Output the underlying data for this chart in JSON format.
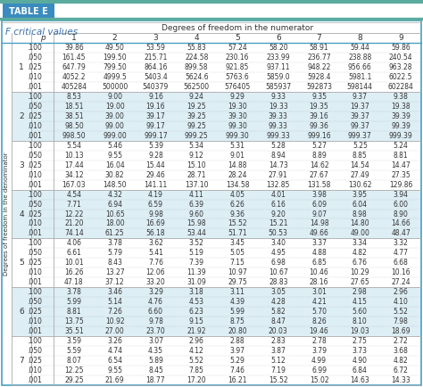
{
  "title_box": "TABLE E",
  "subtitle": "F critical values",
  "col_header": "Degrees of freedom in the numerator",
  "col_nums": [
    "1",
    "2",
    "3",
    "4",
    "5",
    "6",
    "7",
    "8",
    "9"
  ],
  "p_label": "p",
  "row_label_outer": "Degrees of freedom in the denominator",
  "row_groups": [
    {
      "group": "1",
      "rows": [
        {
          "p": ".100",
          "vals": [
            "39.86",
            "49.50",
            "53.59",
            "55.83",
            "57.24",
            "58.20",
            "58.91",
            "59.44",
            "59.86"
          ]
        },
        {
          "p": ".050",
          "vals": [
            "161.45",
            "199.50",
            "215.71",
            "224.58",
            "230.16",
            "233.99",
            "236.77",
            "238.88",
            "240.54"
          ]
        },
        {
          "p": ".025",
          "vals": [
            "647.79",
            "799.50",
            "864.16",
            "899.58",
            "921.85",
            "937.11",
            "948.22",
            "956.66",
            "963.28"
          ]
        },
        {
          "p": ".010",
          "vals": [
            "4052.2",
            "4999.5",
            "5403.4",
            "5624.6",
            "5763.6",
            "5859.0",
            "5928.4",
            "5981.1",
            "6022.5"
          ]
        },
        {
          "p": ".001",
          "vals": [
            "405284",
            "500000",
            "540379",
            "562500",
            "576405",
            "585937",
            "592873",
            "598144",
            "602284"
          ]
        }
      ]
    },
    {
      "group": "2",
      "rows": [
        {
          "p": ".100",
          "vals": [
            "8.53",
            "9.00",
            "9.16",
            "9.24",
            "9.29",
            "9.33",
            "9.35",
            "9.37",
            "9.38"
          ]
        },
        {
          "p": ".050",
          "vals": [
            "18.51",
            "19.00",
            "19.16",
            "19.25",
            "19.30",
            "19.33",
            "19.35",
            "19.37",
            "19.38"
          ]
        },
        {
          "p": ".025",
          "vals": [
            "38.51",
            "39.00",
            "39.17",
            "39.25",
            "39.30",
            "39.33",
            "39.16",
            "39.37",
            "39.39"
          ]
        },
        {
          "p": ".010",
          "vals": [
            "98.50",
            "99.00",
            "99.17",
            "99.25",
            "99.30",
            "99.33",
            "99.36",
            "99.37",
            "99.39"
          ]
        },
        {
          "p": ".001",
          "vals": [
            "998.50",
            "999.00",
            "999.17",
            "999.25",
            "999.30",
            "999.33",
            "999.16",
            "999.37",
            "999.39"
          ]
        }
      ]
    },
    {
      "group": "3",
      "rows": [
        {
          "p": ".100",
          "vals": [
            "5.54",
            "5.46",
            "5.39",
            "5.34",
            "5.31",
            "5.28",
            "5.27",
            "5.25",
            "5.24"
          ]
        },
        {
          "p": ".050",
          "vals": [
            "10.13",
            "9.55",
            "9.28",
            "9.12",
            "9.01",
            "8.94",
            "8.89",
            "8.85",
            "8.81"
          ]
        },
        {
          "p": ".025",
          "vals": [
            "17.44",
            "16.04",
            "15.44",
            "15.10",
            "14.88",
            "14.73",
            "14.62",
            "14.54",
            "14.47"
          ]
        },
        {
          "p": ".010",
          "vals": [
            "34.12",
            "30.82",
            "29.46",
            "28.71",
            "28.24",
            "27.91",
            "27.67",
            "27.49",
            "27.35"
          ]
        },
        {
          "p": ".001",
          "vals": [
            "167.03",
            "148.50",
            "141.11",
            "137.10",
            "134.58",
            "132.85",
            "131.58",
            "130.62",
            "129.86"
          ]
        }
      ]
    },
    {
      "group": "4",
      "rows": [
        {
          "p": ".100",
          "vals": [
            "4.54",
            "4.32",
            "4.19",
            "4.11",
            "4.05",
            "4.01",
            "3.98",
            "3.95",
            "3.94"
          ]
        },
        {
          "p": ".050",
          "vals": [
            "7.71",
            "6.94",
            "6.59",
            "6.39",
            "6.26",
            "6.16",
            "6.09",
            "6.04",
            "6.00"
          ]
        },
        {
          "p": ".025",
          "vals": [
            "12.22",
            "10.65",
            "9.98",
            "9.60",
            "9.36",
            "9.20",
            "9.07",
            "8.98",
            "8.90"
          ]
        },
        {
          "p": ".010",
          "vals": [
            "21.20",
            "18.00",
            "16.69",
            "15.98",
            "15.52",
            "15.21",
            "14.98",
            "14.80",
            "14.66"
          ]
        },
        {
          "p": ".001",
          "vals": [
            "74.14",
            "61.25",
            "56.18",
            "53.44",
            "51.71",
            "50.53",
            "49.66",
            "49.00",
            "48.47"
          ]
        }
      ]
    },
    {
      "group": "5",
      "rows": [
        {
          "p": ".100",
          "vals": [
            "4.06",
            "3.78",
            "3.62",
            "3.52",
            "3.45",
            "3.40",
            "3.37",
            "3.34",
            "3.32"
          ]
        },
        {
          "p": ".050",
          "vals": [
            "6.61",
            "5.79",
            "5.41",
            "5.19",
            "5.05",
            "4.95",
            "4.88",
            "4.82",
            "4.77"
          ]
        },
        {
          "p": ".025",
          "vals": [
            "10.01",
            "8.43",
            "7.76",
            "7.39",
            "7.15",
            "6.98",
            "6.85",
            "6.76",
            "6.68"
          ]
        },
        {
          "p": ".010",
          "vals": [
            "16.26",
            "13.27",
            "12.06",
            "11.39",
            "10.97",
            "10.67",
            "10.46",
            "10.29",
            "10.16"
          ]
        },
        {
          "p": ".001",
          "vals": [
            "47.18",
            "37.12",
            "33.20",
            "31.09",
            "29.75",
            "28.83",
            "28.16",
            "27.65",
            "27.24"
          ]
        }
      ]
    },
    {
      "group": "6",
      "rows": [
        {
          "p": ".100",
          "vals": [
            "3.78",
            "3.46",
            "3.29",
            "3.18",
            "3.11",
            "3.05",
            "3.01",
            "2.98",
            "2.96"
          ]
        },
        {
          "p": ".050",
          "vals": [
            "5.99",
            "5.14",
            "4.76",
            "4.53",
            "4.39",
            "4.28",
            "4.21",
            "4.15",
            "4.10"
          ]
        },
        {
          "p": ".025",
          "vals": [
            "8.81",
            "7.26",
            "6.60",
            "6.23",
            "5.99",
            "5.82",
            "5.70",
            "5.60",
            "5.52"
          ]
        },
        {
          "p": ".010",
          "vals": [
            "13.75",
            "10.92",
            "9.78",
            "9.15",
            "8.75",
            "8.47",
            "8.26",
            "8.10",
            "7.98"
          ]
        },
        {
          "p": ".001",
          "vals": [
            "35.51",
            "27.00",
            "23.70",
            "21.92",
            "20.80",
            "20.03",
            "19.46",
            "19.03",
            "18.69"
          ]
        }
      ]
    },
    {
      "group": "7",
      "rows": [
        {
          "p": ".100",
          "vals": [
            "3.59",
            "3.26",
            "3.07",
            "2.96",
            "2.88",
            "2.83",
            "2.78",
            "2.75",
            "2.72"
          ]
        },
        {
          "p": ".050",
          "vals": [
            "5.59",
            "4.74",
            "4.35",
            "4.12",
            "3.97",
            "3.87",
            "3.79",
            "3.73",
            "3.68"
          ]
        },
        {
          "p": ".025",
          "vals": [
            "8.07",
            "6.54",
            "5.89",
            "5.52",
            "5.29",
            "5.12",
            "4.99",
            "4.90",
            "4.82"
          ]
        },
        {
          "p": ".010",
          "vals": [
            "12.25",
            "9.55",
            "8.45",
            "7.85",
            "7.46",
            "7.19",
            "6.99",
            "6.84",
            "6.72"
          ]
        },
        {
          "p": ".001",
          "vals": [
            "29.25",
            "21.69",
            "18.77",
            "17.20",
            "16.21",
            "15.52",
            "15.02",
            "14.63",
            "14.33"
          ]
        }
      ]
    }
  ],
  "colors": {
    "teal_header": "#5aab9e",
    "blue_box_bg": "#3a8bbf",
    "blue_box_text": "#ffffff",
    "blue_border": "#4a9fc4",
    "subtitle_text": "#3a6ea8",
    "alt_row_bg": "#ddeef5",
    "grid_line": "#aaaaaa",
    "text_dark": "#333333",
    "white": "#ffffff"
  },
  "layout": {
    "fig_w": 4.74,
    "fig_h": 4.34,
    "dpi": 100
  }
}
